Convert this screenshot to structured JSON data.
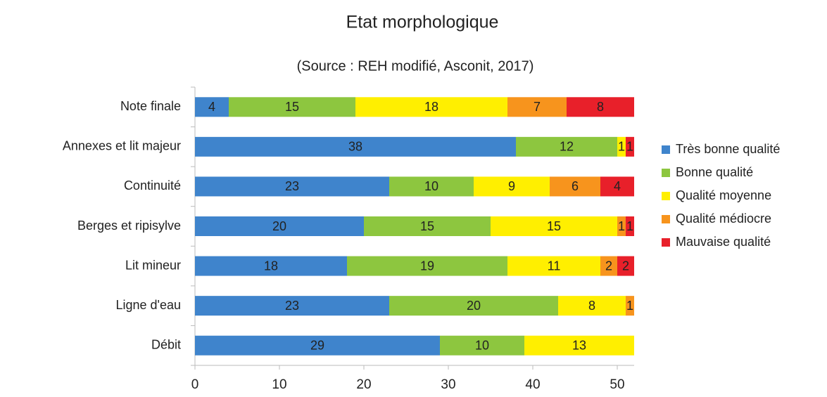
{
  "chart_data": {
    "type": "stacked_barh",
    "title": "Etat morphologique",
    "subtitle": "(Source : REH modifié, Asconit, 2017)",
    "categories": [
      "Note finale",
      "Annexes et lit majeur",
      "Continuité",
      "Berges et ripisylve",
      "Lit mineur",
      "Ligne d'eau",
      "Débit"
    ],
    "series": [
      {
        "name": "Très bonne qualité",
        "color": "#3f84cc",
        "values": [
          4,
          38,
          23,
          20,
          18,
          23,
          29
        ]
      },
      {
        "name": "Bonne qualité",
        "color": "#8dc63f",
        "values": [
          15,
          12,
          10,
          15,
          19,
          20,
          10
        ]
      },
      {
        "name": "Qualité moyenne",
        "color": "#ffef00",
        "values": [
          18,
          1,
          9,
          15,
          11,
          8,
          13
        ]
      },
      {
        "name": "Qualité médiocre",
        "color": "#f7941d",
        "values": [
          7,
          null,
          6,
          1,
          2,
          1,
          null
        ]
      },
      {
        "name": "Mauvaise qualité",
        "color": "#e8202a",
        "values": [
          8,
          1,
          4,
          1,
          2,
          null,
          null
        ]
      }
    ],
    "xlim": [
      0,
      52
    ],
    "xticks": [
      0,
      10,
      20,
      30,
      40,
      50
    ],
    "legend": "right"
  }
}
